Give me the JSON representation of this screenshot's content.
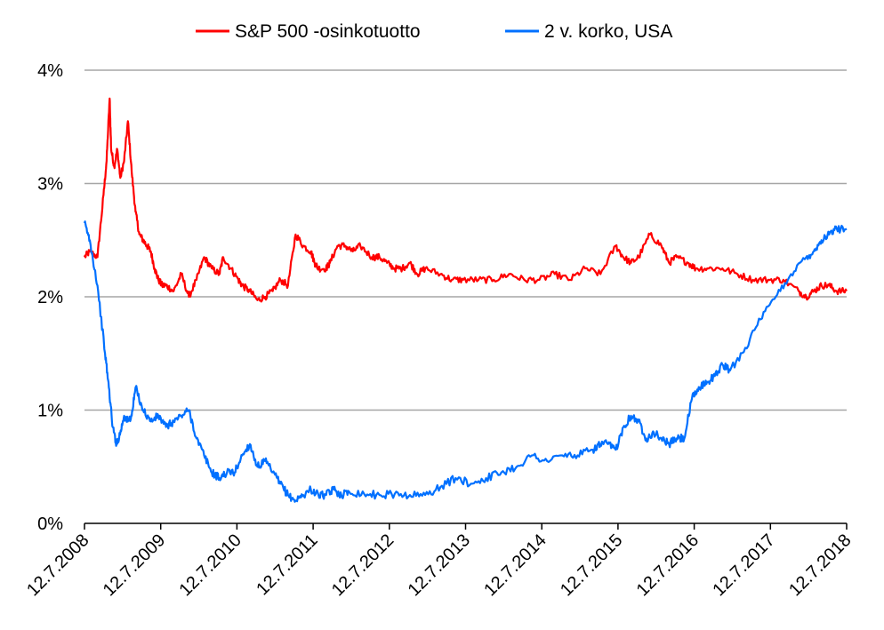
{
  "chart_data": {
    "type": "line",
    "title": "",
    "xlabel": "",
    "ylabel": "",
    "ylim": [
      0,
      4
    ],
    "grid": true,
    "legend_position": "top",
    "y_ticks": [
      "0%",
      "1%",
      "2%",
      "3%",
      "4%"
    ],
    "y_tick_values": [
      0,
      1,
      2,
      3,
      4
    ],
    "categories": [
      "12.7.2008",
      "12.7.2009",
      "12.7.2010",
      "12.7.2011",
      "12.7.2012",
      "12.7.2013",
      "12.7.2014",
      "12.7.2015",
      "12.7.2016",
      "12.7.2017",
      "12.7.2018"
    ],
    "x_range": [
      2008.53,
      2018.53
    ],
    "series": [
      {
        "name": "S&P 500 -osinkotuotto",
        "color": "#ff0000",
        "x": [
          2008.53,
          2008.6,
          2008.7,
          2008.78,
          2008.82,
          2008.86,
          2008.88,
          2008.92,
          2008.96,
          2009.0,
          2009.05,
          2009.1,
          2009.15,
          2009.2,
          2009.25,
          2009.3,
          2009.35,
          2009.4,
          2009.45,
          2009.5,
          2009.55,
          2009.6,
          2009.7,
          2009.8,
          2009.9,
          2010.0,
          2010.1,
          2010.2,
          2010.3,
          2010.35,
          2010.45,
          2010.55,
          2010.6,
          2010.7,
          2010.8,
          2010.9,
          2011.0,
          2011.1,
          2011.2,
          2011.3,
          2011.4,
          2011.5,
          2011.55,
          2011.6,
          2011.7,
          2011.75,
          2011.85,
          2011.95,
          2012.05,
          2012.15,
          2012.3,
          2012.4,
          2012.5,
          2012.6,
          2012.7,
          2012.8,
          2012.9,
          2013.0,
          2013.2,
          2013.35,
          2013.5,
          2013.7,
          2013.9,
          2014.1,
          2014.3,
          2014.5,
          2014.7,
          2014.9,
          2015.1,
          2015.3,
          2015.5,
          2015.6,
          2015.7,
          2015.8,
          2015.95,
          2016.1,
          2016.2,
          2016.3,
          2016.45,
          2016.55,
          2016.7,
          2016.9,
          2017.1,
          2017.3,
          2017.5,
          2017.7,
          2017.9,
          2018.0,
          2018.1,
          2018.2,
          2018.3,
          2018.4,
          2018.53
        ],
        "values": [
          2.35,
          2.4,
          2.35,
          2.9,
          3.2,
          3.75,
          3.3,
          3.15,
          3.3,
          3.05,
          3.2,
          3.55,
          3.1,
          2.75,
          2.55,
          2.5,
          2.45,
          2.4,
          2.25,
          2.15,
          2.1,
          2.1,
          2.05,
          2.2,
          2.0,
          2.15,
          2.35,
          2.25,
          2.2,
          2.35,
          2.25,
          2.15,
          2.1,
          2.05,
          1.97,
          2.0,
          2.05,
          2.15,
          2.1,
          2.55,
          2.45,
          2.4,
          2.3,
          2.25,
          2.25,
          2.3,
          2.45,
          2.45,
          2.4,
          2.45,
          2.35,
          2.35,
          2.3,
          2.25,
          2.25,
          2.3,
          2.2,
          2.25,
          2.2,
          2.15,
          2.15,
          2.15,
          2.15,
          2.2,
          2.15,
          2.15,
          2.2,
          2.15,
          2.25,
          2.2,
          2.45,
          2.35,
          2.3,
          2.35,
          2.55,
          2.45,
          2.3,
          2.35,
          2.3,
          2.25,
          2.25,
          2.25,
          2.2,
          2.15,
          2.15,
          2.15,
          2.05,
          2.0,
          2.05,
          2.1,
          2.1,
          2.05,
          2.05
        ]
      },
      {
        "name": "2 v. korko, USA",
        "color": "#0070ff",
        "x": [
          2008.53,
          2008.6,
          2008.7,
          2008.8,
          2008.85,
          2008.9,
          2008.95,
          2009.0,
          2009.05,
          2009.1,
          2009.15,
          2009.2,
          2009.3,
          2009.4,
          2009.5,
          2009.6,
          2009.7,
          2009.8,
          2009.9,
          2010.0,
          2010.1,
          2010.2,
          2010.3,
          2010.4,
          2010.5,
          2010.6,
          2010.7,
          2010.8,
          2010.9,
          2011.0,
          2011.1,
          2011.2,
          2011.3,
          2011.4,
          2011.5,
          2011.6,
          2011.7,
          2011.8,
          2011.9,
          2012.0,
          2012.2,
          2012.4,
          2012.6,
          2012.8,
          2013.0,
          2013.2,
          2013.4,
          2013.6,
          2013.8,
          2014.0,
          2014.2,
          2014.4,
          2014.6,
          2014.8,
          2015.0,
          2015.2,
          2015.3,
          2015.4,
          2015.5,
          2015.6,
          2015.7,
          2015.8,
          2015.9,
          2016.0,
          2016.1,
          2016.2,
          2016.3,
          2016.4,
          2016.5,
          2016.6,
          2016.7,
          2016.8,
          2016.9,
          2017.0,
          2017.2,
          2017.4,
          2017.6,
          2017.8,
          2018.0,
          2018.1,
          2018.2,
          2018.3,
          2018.4,
          2018.53
        ],
        "values": [
          2.65,
          2.5,
          2.1,
          1.5,
          1.2,
          0.85,
          0.7,
          0.8,
          0.95,
          0.9,
          0.95,
          1.2,
          1.0,
          0.9,
          0.95,
          0.85,
          0.9,
          0.95,
          1.0,
          0.75,
          0.6,
          0.45,
          0.4,
          0.45,
          0.45,
          0.6,
          0.7,
          0.5,
          0.55,
          0.45,
          0.35,
          0.25,
          0.2,
          0.25,
          0.3,
          0.25,
          0.25,
          0.3,
          0.25,
          0.28,
          0.26,
          0.25,
          0.26,
          0.25,
          0.25,
          0.32,
          0.4,
          0.35,
          0.4,
          0.45,
          0.5,
          0.6,
          0.55,
          0.6,
          0.6,
          0.65,
          0.7,
          0.7,
          0.65,
          0.85,
          0.95,
          0.9,
          0.75,
          0.8,
          0.75,
          0.7,
          0.75,
          0.75,
          1.1,
          1.2,
          1.25,
          1.3,
          1.4,
          1.35,
          1.55,
          1.8,
          2.0,
          2.2,
          2.35,
          2.4,
          2.5,
          2.55,
          2.6,
          2.6
        ]
      }
    ]
  }
}
